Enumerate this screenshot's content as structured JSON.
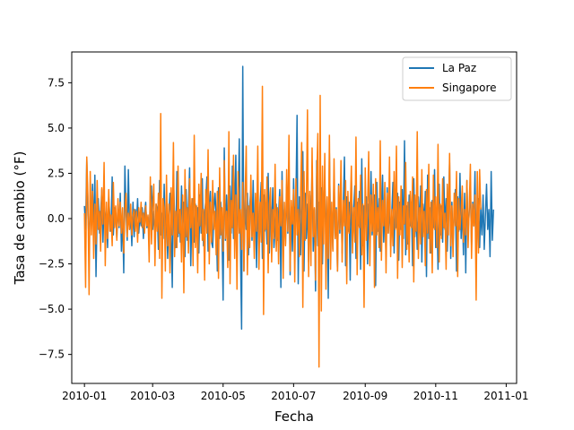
{
  "chart_data": {
    "type": "line",
    "title": "",
    "xlabel": "Fecha",
    "ylabel": "Tasa de cambio (°F)",
    "x_start": "2010-01-01",
    "x_end": "2010-12-31",
    "x_frequency": "daily",
    "xlim": [
      "2009-12-21",
      "2011-01-10"
    ],
    "ylim": [
      -9.1,
      9.2
    ],
    "x_ticks": [
      "2010-01",
      "2010-03",
      "2010-05",
      "2010-07",
      "2010-09",
      "2010-11",
      "2011-01"
    ],
    "y_ticks": [
      -7.5,
      -5.0,
      -2.5,
      0.0,
      2.5,
      5.0,
      7.5
    ],
    "y_tick_labels": [
      "−7.5",
      "−5.0",
      "−2.5",
      "0.0",
      "2.5",
      "5.0",
      "7.5"
    ],
    "grid": false,
    "legend_position": "top-right",
    "series": [
      {
        "name": "La Paz",
        "color": "#1f77b4",
        "values": [
          0.7,
          -0.6,
          3.3,
          0.2,
          -1.4,
          1.0,
          -0.4,
          1.9,
          -1.0,
          2.4,
          -3.2,
          0.5,
          1.1,
          -0.8,
          0.3,
          1.6,
          -1.3,
          0.9,
          -0.2,
          0.4,
          -1.6,
          1.2,
          0.1,
          -0.7,
          2.3,
          -0.9,
          0.6,
          0.2,
          -1.1,
          0.8,
          -0.5,
          1.4,
          -1.8,
          0.3,
          -3.0,
          2.9,
          0.4,
          -1.2,
          2.7,
          -0.6,
          0.2,
          -1.5,
          0.9,
          -1.0,
          0.5,
          -0.3,
          1.1,
          -0.8,
          0.2,
          -0.4,
          0.6,
          -1.1,
          0.3,
          0.9,
          -0.5,
          0.1,
          -0.9,
          1.0,
          1.8,
          -0.6,
          0.4,
          -1.3,
          0.8,
          0.5,
          -1.7,
          2.1,
          -0.9,
          0.3,
          -1.1,
          1.9,
          -1.4,
          0.6,
          -2.2,
          0.2,
          1.4,
          -0.7,
          -3.8,
          2.3,
          0.1,
          -1.6,
          2.6,
          -1.0,
          0.5,
          -1.3,
          1.8,
          -0.4,
          0.9,
          -2.1,
          1.6,
          -1.2,
          0.7,
          2.8,
          -2.6,
          0.4,
          1.1,
          -1.3,
          0.8,
          -0.3,
          0.6,
          -1.9,
          1.3,
          -0.8,
          2.2,
          -1.5,
          0.3,
          1.0,
          2.3,
          -1.8,
          0.7,
          1.5,
          -1.3,
          -1.6,
          0.5,
          1.4,
          0.2,
          -2.9,
          1.7,
          -1.1,
          0.9,
          -0.6,
          -4.5,
          3.9,
          -1.2,
          1.3,
          -0.4,
          -2.3,
          1.8,
          -0.8,
          2.9,
          -1.1,
          0.6,
          3.5,
          -2.4,
          0.9,
          4.4,
          -1.6,
          -6.1,
          8.4,
          -2.9,
          1.1,
          -0.6,
          1.4,
          -2.0,
          0.7,
          1.6,
          -1.2,
          2.1,
          -0.9,
          0.5,
          -2.7,
          1.8,
          -1.5,
          0.8,
          2.0,
          -2.2,
          1.3,
          -0.7,
          0.4,
          -1.4,
          2.5,
          -1.9,
          0.9,
          -0.5,
          1.7,
          -1.6,
          -0.6,
          0.8,
          -1.2,
          0.2,
          1.6,
          -3.8,
          2.6,
          -1.0,
          0.5,
          -1.4,
          1.9,
          -0.8,
          2.4,
          -3.1,
          0.7,
          -1.8,
          2.2,
          -0.4,
          0.9,
          5.7,
          -3.6,
          1.2,
          -2.0,
          0.6,
          3.7,
          -2.9,
          1.4,
          -1.1,
          0.8,
          -2.4,
          1.3,
          -0.6,
          2.9,
          -1.8,
          0.5,
          -4.0,
          3.2,
          -1.5,
          0.9,
          -0.2,
          1.7,
          -2.5,
          0.7,
          2.0,
          -1.4,
          1.1,
          -4.4,
          3.6,
          -0.9,
          0.4,
          -1.7,
          2.3,
          -1.1,
          0.6,
          -2.9,
          1.9,
          -0.8,
          1.4,
          -1.9,
          0.5,
          3.4,
          -2.6,
          1.2,
          -0.7,
          0.9,
          -3.4,
          2.1,
          -1.2,
          0.6,
          1.8,
          -2.2,
          0.9,
          -0.4,
          1.5,
          -2.8,
          3.3,
          -1.5,
          0.7,
          -0.3,
          1.2,
          -2.5,
          0.8,
          -1.6,
          2.6,
          -0.9,
          0.4,
          1.3,
          -3.7,
          2.0,
          -0.7,
          1.1,
          -1.8,
          0.5,
          2.4,
          -1.3,
          0.6,
          -2.1,
          1.7,
          -0.8,
          1.0,
          -1.5,
          0.3,
          2.0,
          -1.9,
          0.8,
          -0.5,
          1.4,
          -2.3,
          0.9,
          -0.6,
          1.6,
          -1.1,
          4.3,
          -2.0,
          0.7,
          -1.4,
          1.3,
          -0.4,
          0.9,
          -2.6,
          2.2,
          -1.0,
          0.5,
          -1.7,
          1.2,
          -0.6,
          1.8,
          -2.4,
          0.8,
          -0.3,
          1.5,
          -3.2,
          2.4,
          -1.1,
          0.6,
          -1.9,
          1.0,
          -0.5,
          2.7,
          -1.6,
          0.4,
          -2.8,
          1.9,
          -0.9,
          0.7,
          -1.3,
          2.3,
          -0.6,
          1.1,
          -1.8,
          0.5,
          3.1,
          -2.2,
          0.9,
          -1.4,
          0.3,
          1.6,
          -2.9,
          1.2,
          -0.7,
          2.5,
          -1.1,
          0.6,
          -2.0,
          1.4,
          -3.0,
          2.1,
          -0.8,
          0.4,
          1.7,
          -1.5,
          0.9,
          -0.4,
          2.6,
          -2.3,
          0.3,
          1.1,
          -1.6,
          0.6,
          -0.9,
          1.3,
          -1.7,
          0.2,
          1.9,
          -0.6,
          0.5,
          -2.1,
          2.6,
          -1.2,
          0.5
        ],
        "description_note": ""
      },
      {
        "name": "Singapore",
        "color": "#ff7f0e",
        "values": [
          0.3,
          -3.8,
          3.4,
          1.2,
          -4.2,
          2.6,
          -0.9,
          1.5,
          -2.2,
          0.8,
          -1.4,
          2.1,
          -0.6,
          0.4,
          -1.8,
          1.7,
          -0.3,
          3.1,
          -2.6,
          0.9,
          -1.1,
          1.6,
          -0.7,
          0.2,
          -1.5,
          2.0,
          -0.5,
          0.7,
          -1.2,
          1.1,
          -0.4,
          0.9,
          -0.8,
          0.6,
          -1.9,
          0.5,
          1.4,
          -1.0,
          0.3,
          -0.6,
          0.8,
          -0.9,
          0.2,
          0.5,
          -0.7,
          0.4,
          -1.3,
          0.6,
          -0.2,
          0.9,
          -0.5,
          0.3,
          -0.8,
          0.7,
          -0.4,
          0.2,
          -2.4,
          2.3,
          -1.4,
          0.6,
          1.9,
          -2.6,
          0.8,
          -0.7,
          1.4,
          -2.2,
          5.8,
          -4.4,
          1.1,
          0.6,
          -2.9,
          2.4,
          -1.5,
          0.8,
          -3.0,
          1.7,
          -0.9,
          4.2,
          -2.1,
          0.4,
          -1.6,
          2.9,
          -0.8,
          0.5,
          -2.4,
          1.3,
          -4.1,
          2.7,
          -1.0,
          0.6,
          -1.9,
          2.2,
          -0.5,
          1.1,
          -2.6,
          4.6,
          -1.6,
          0.7,
          -3.0,
          1.9,
          -0.4,
          2.5,
          -1.2,
          0.5,
          -3.4,
          1.6,
          -0.8,
          3.8,
          -2.5,
          0.9,
          -1.3,
          2.1,
          -0.6,
          0.4,
          -2.0,
          1.5,
          -3.3,
          2.8,
          -0.9,
          0.6,
          -1.8,
          3.2,
          -1.1,
          0.4,
          -2.7,
          4.8,
          -3.6,
          1.0,
          -0.5,
          3.5,
          -2.2,
          1.3,
          -3.9,
          2.6,
          -0.8,
          0.5,
          -1.7,
          2.0,
          -2.9,
          1.1,
          4.0,
          -3.1,
          0.7,
          -1.6,
          2.4,
          -1.0,
          0.3,
          -2.2,
          1.4,
          -0.7,
          4.0,
          -2.8,
          0.9,
          -1.3,
          7.3,
          -5.3,
          1.6,
          -0.6,
          2.3,
          -3.0,
          0.8,
          1.7,
          -2.4,
          0.5,
          -1.1,
          3.0,
          -1.8,
          0.6,
          -2.5,
          1.2,
          -0.4,
          2.1,
          -3.3,
          0.9,
          -1.5,
          2.7,
          -0.7,
          4.6,
          -2.9,
          1.0,
          -0.3,
          1.6,
          -3.5,
          2.2,
          -0.9,
          0.5,
          -2.1,
          1.3,
          4.2,
          -4.9,
          2.6,
          -1.2,
          0.7,
          6.0,
          -3.2,
          1.5,
          -2.6,
          3.9,
          -1.0,
          0.6,
          -3.4,
          2.3,
          4.7,
          -8.2,
          6.8,
          -5.1,
          2.9,
          -1.4,
          3.6,
          -3.9,
          1.2,
          -2.2,
          4.6,
          -2.8,
          0.9,
          -1.8,
          3.3,
          -1.1,
          0.5,
          -2.9,
          1.8,
          -0.6,
          3.2,
          -2.4,
          1.0,
          -0.4,
          2.1,
          -3.6,
          1.5,
          -0.8,
          0.4,
          2.9,
          -1.9,
          0.6,
          -1.3,
          4.5,
          -3.1,
          1.1,
          -0.5,
          2.4,
          -2.0,
          0.8,
          -4.9,
          2.8,
          -1.2,
          0.5,
          3.7,
          -2.6,
          1.3,
          -0.7,
          1.9,
          -3.8,
          2.2,
          -0.9,
          0.6,
          -1.6,
          4.3,
          -2.3,
          1.0,
          -0.4,
          2.0,
          -3.0,
          1.4,
          -0.8,
          3.4,
          -2.1,
          0.5,
          -1.5,
          2.6,
          -0.6,
          4.0,
          -3.3,
          1.2,
          -0.9,
          1.8,
          -2.7,
          0.7,
          -0.3,
          3.1,
          -1.7,
          0.9,
          -2.4,
          1.5,
          -0.5,
          2.3,
          -3.5,
          1.3,
          -0.7,
          4.8,
          -2.2,
          0.6,
          -1.4,
          2.7,
          -1.0,
          0.4,
          -2.6,
          1.6,
          -0.8,
          3.0,
          -1.9,
          0.9,
          -3.0,
          2.4,
          -0.6,
          1.2,
          -1.6,
          4.1,
          -2.4,
          0.8,
          -1.1,
          2.2,
          -0.5,
          0.3,
          -2.8,
          1.9,
          -0.9,
          3.6,
          -1.5,
          0.7,
          -2.1,
          1.4,
          -0.4,
          2.6,
          -3.2,
          1.1,
          -0.6,
          0.4,
          1.8,
          -1.3,
          0.5,
          -0.9,
          2.1,
          -1.6,
          0.6,
          3.0,
          -2.2,
          0.8,
          -0.4,
          1.3,
          -4.5,
          2.6,
          -1.9,
          2.7,
          0.5
        ]
      }
    ]
  }
}
